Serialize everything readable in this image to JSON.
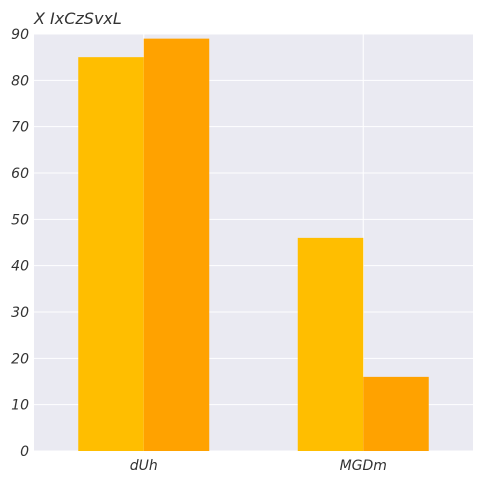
{
  "chart_data": {
    "type": "bar",
    "title": "X IxCzSvxL",
    "xlabel": "",
    "ylabel": "",
    "categories": [
      "dUh",
      "MGDm"
    ],
    "series": [
      {
        "values": [
          85,
          46
        ]
      },
      {
        "values": [
          89,
          16
        ]
      }
    ],
    "ylim": [
      0,
      90
    ],
    "yticks": [
      0,
      10,
      20,
      30,
      40,
      50,
      60,
      70,
      80,
      90
    ],
    "grid": true,
    "legend": "none"
  },
  "colors": {
    "plot_background": "#EAEAF2",
    "grid": "#FFFFFF",
    "series": [
      "#FFBE00",
      "#FFA200"
    ]
  }
}
